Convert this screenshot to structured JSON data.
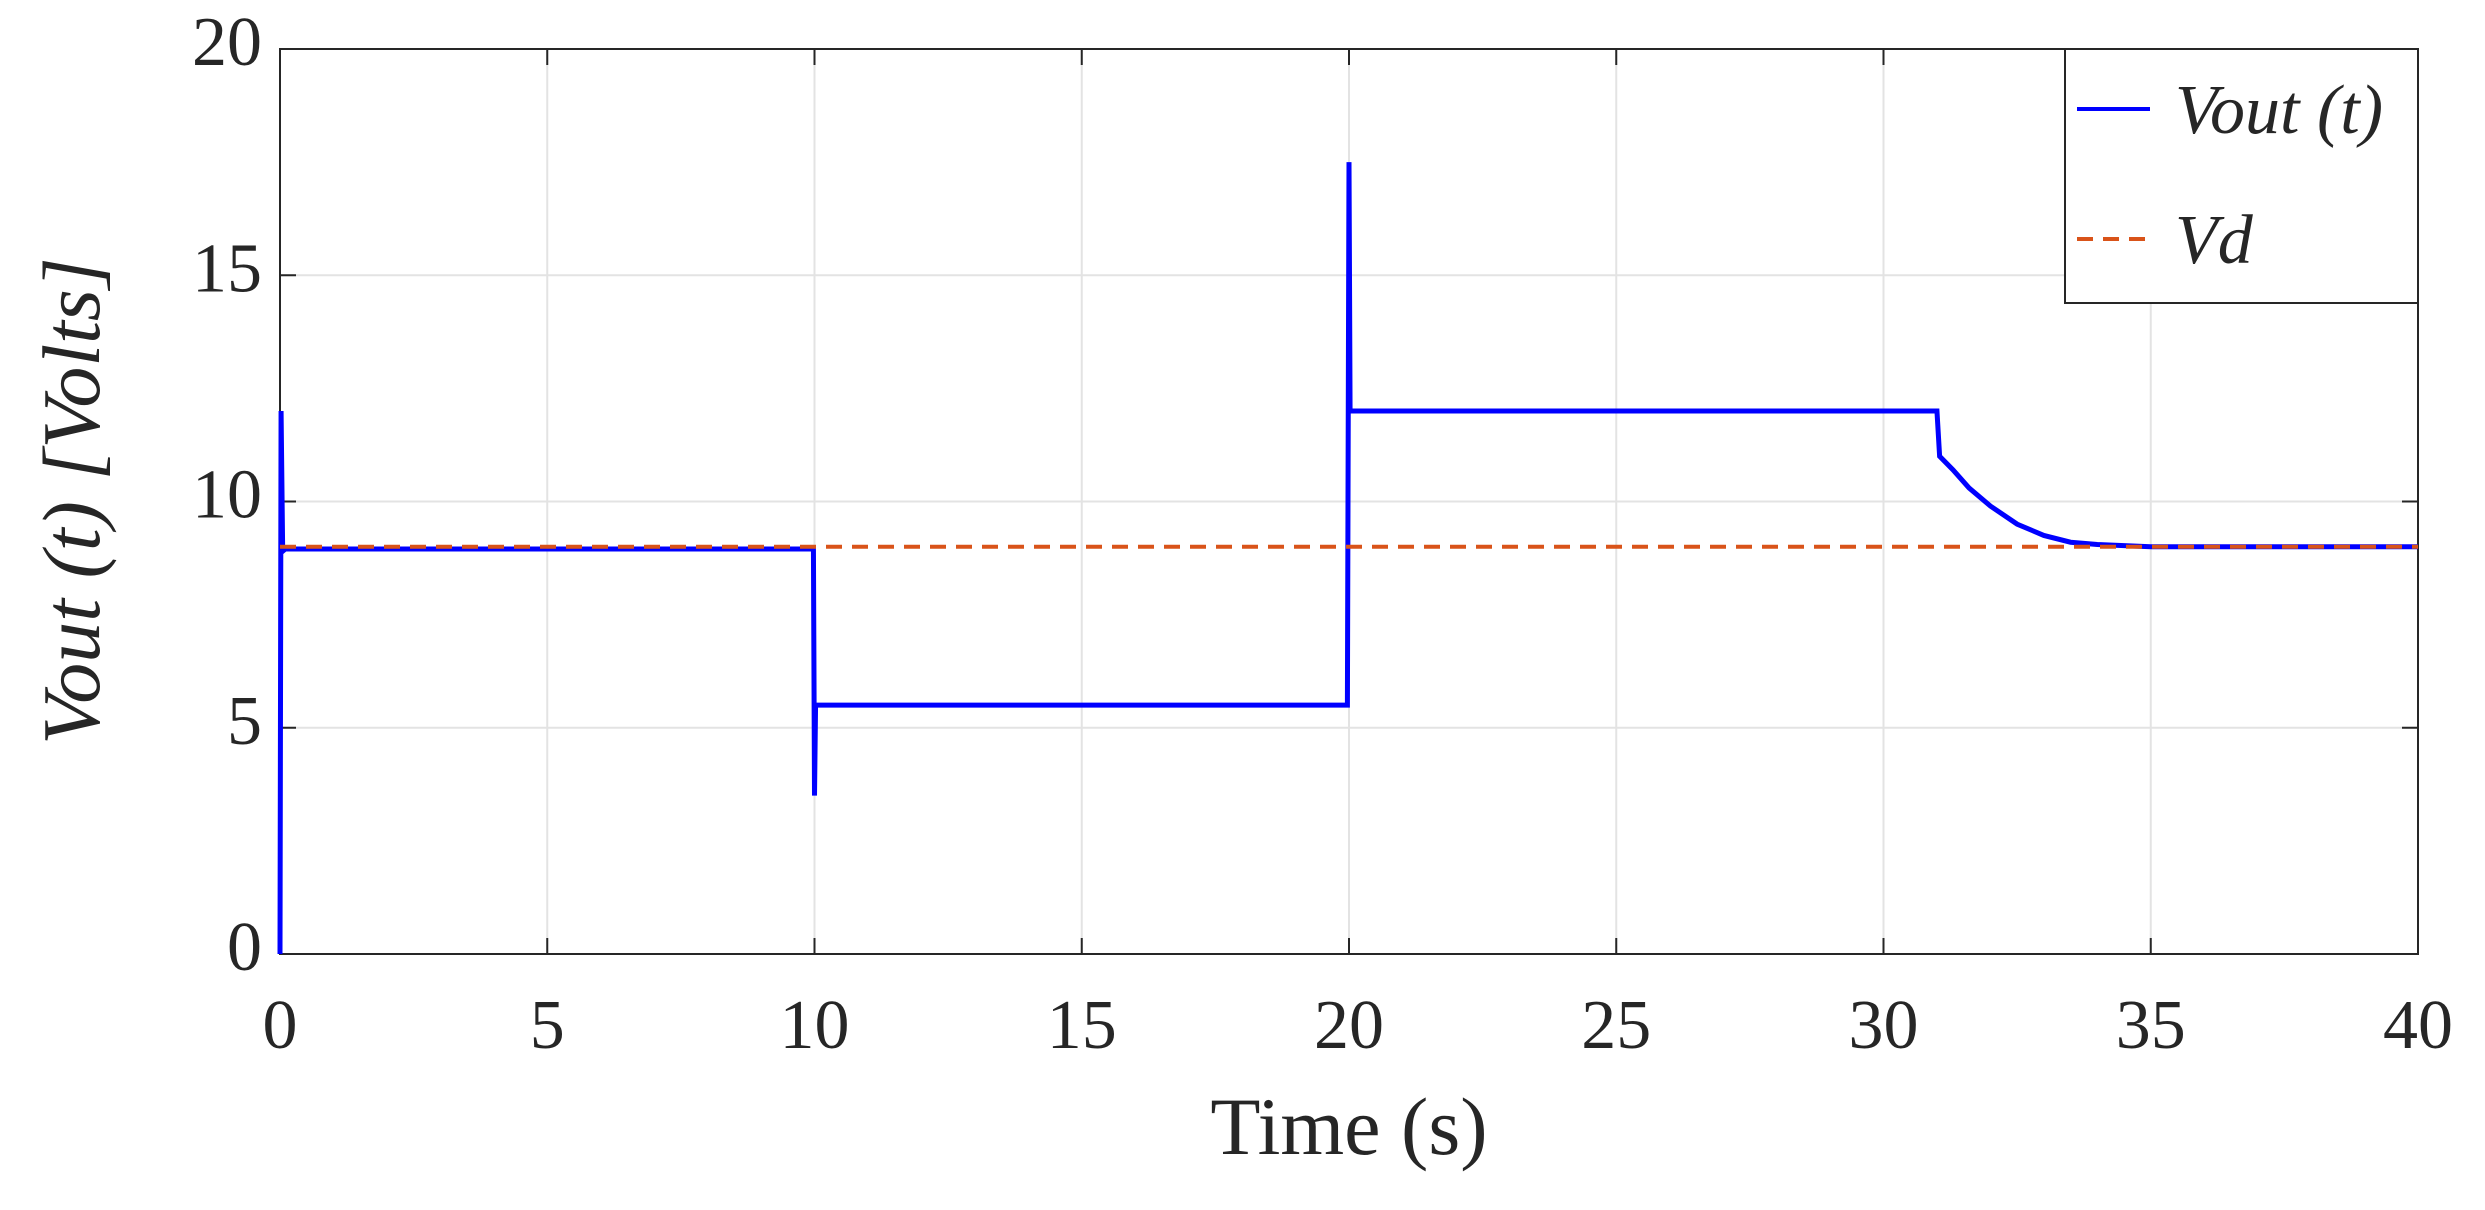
{
  "chart_data": {
    "type": "line",
    "xlabel": "Time (s)",
    "ylabel": "Vout (t) [Volts]",
    "xlim": [
      0,
      40
    ],
    "ylim": [
      0,
      20
    ],
    "xticks": [
      0,
      5,
      10,
      15,
      20,
      25,
      30,
      35,
      40
    ],
    "yticks": [
      0,
      5,
      10,
      15,
      20
    ],
    "grid": true,
    "legend": "upper right",
    "series": [
      {
        "name": "Vout (t)",
        "color": "#0000ff",
        "style": "solid",
        "x": [
          0,
          0.02,
          0.05,
          0.1,
          9.98,
          10.0,
          10.02,
          10.05,
          19.97,
          20.0,
          20.02,
          20.05,
          31.0,
          31.05,
          31.3,
          31.6,
          32.0,
          32.5,
          33.0,
          33.5,
          34.0,
          35.0,
          40.0
        ],
        "values": [
          0,
          12,
          8.9,
          8.95,
          8.95,
          3.5,
          5.5,
          5.5,
          5.5,
          17.5,
          12,
          12,
          12,
          11,
          10.7,
          10.3,
          9.9,
          9.5,
          9.25,
          9.1,
          9.05,
          9.0,
          9.0
        ]
      },
      {
        "name": "Vd",
        "color": "#d95319",
        "style": "dashed",
        "x": [
          0,
          40
        ],
        "values": [
          9,
          9
        ]
      }
    ]
  }
}
